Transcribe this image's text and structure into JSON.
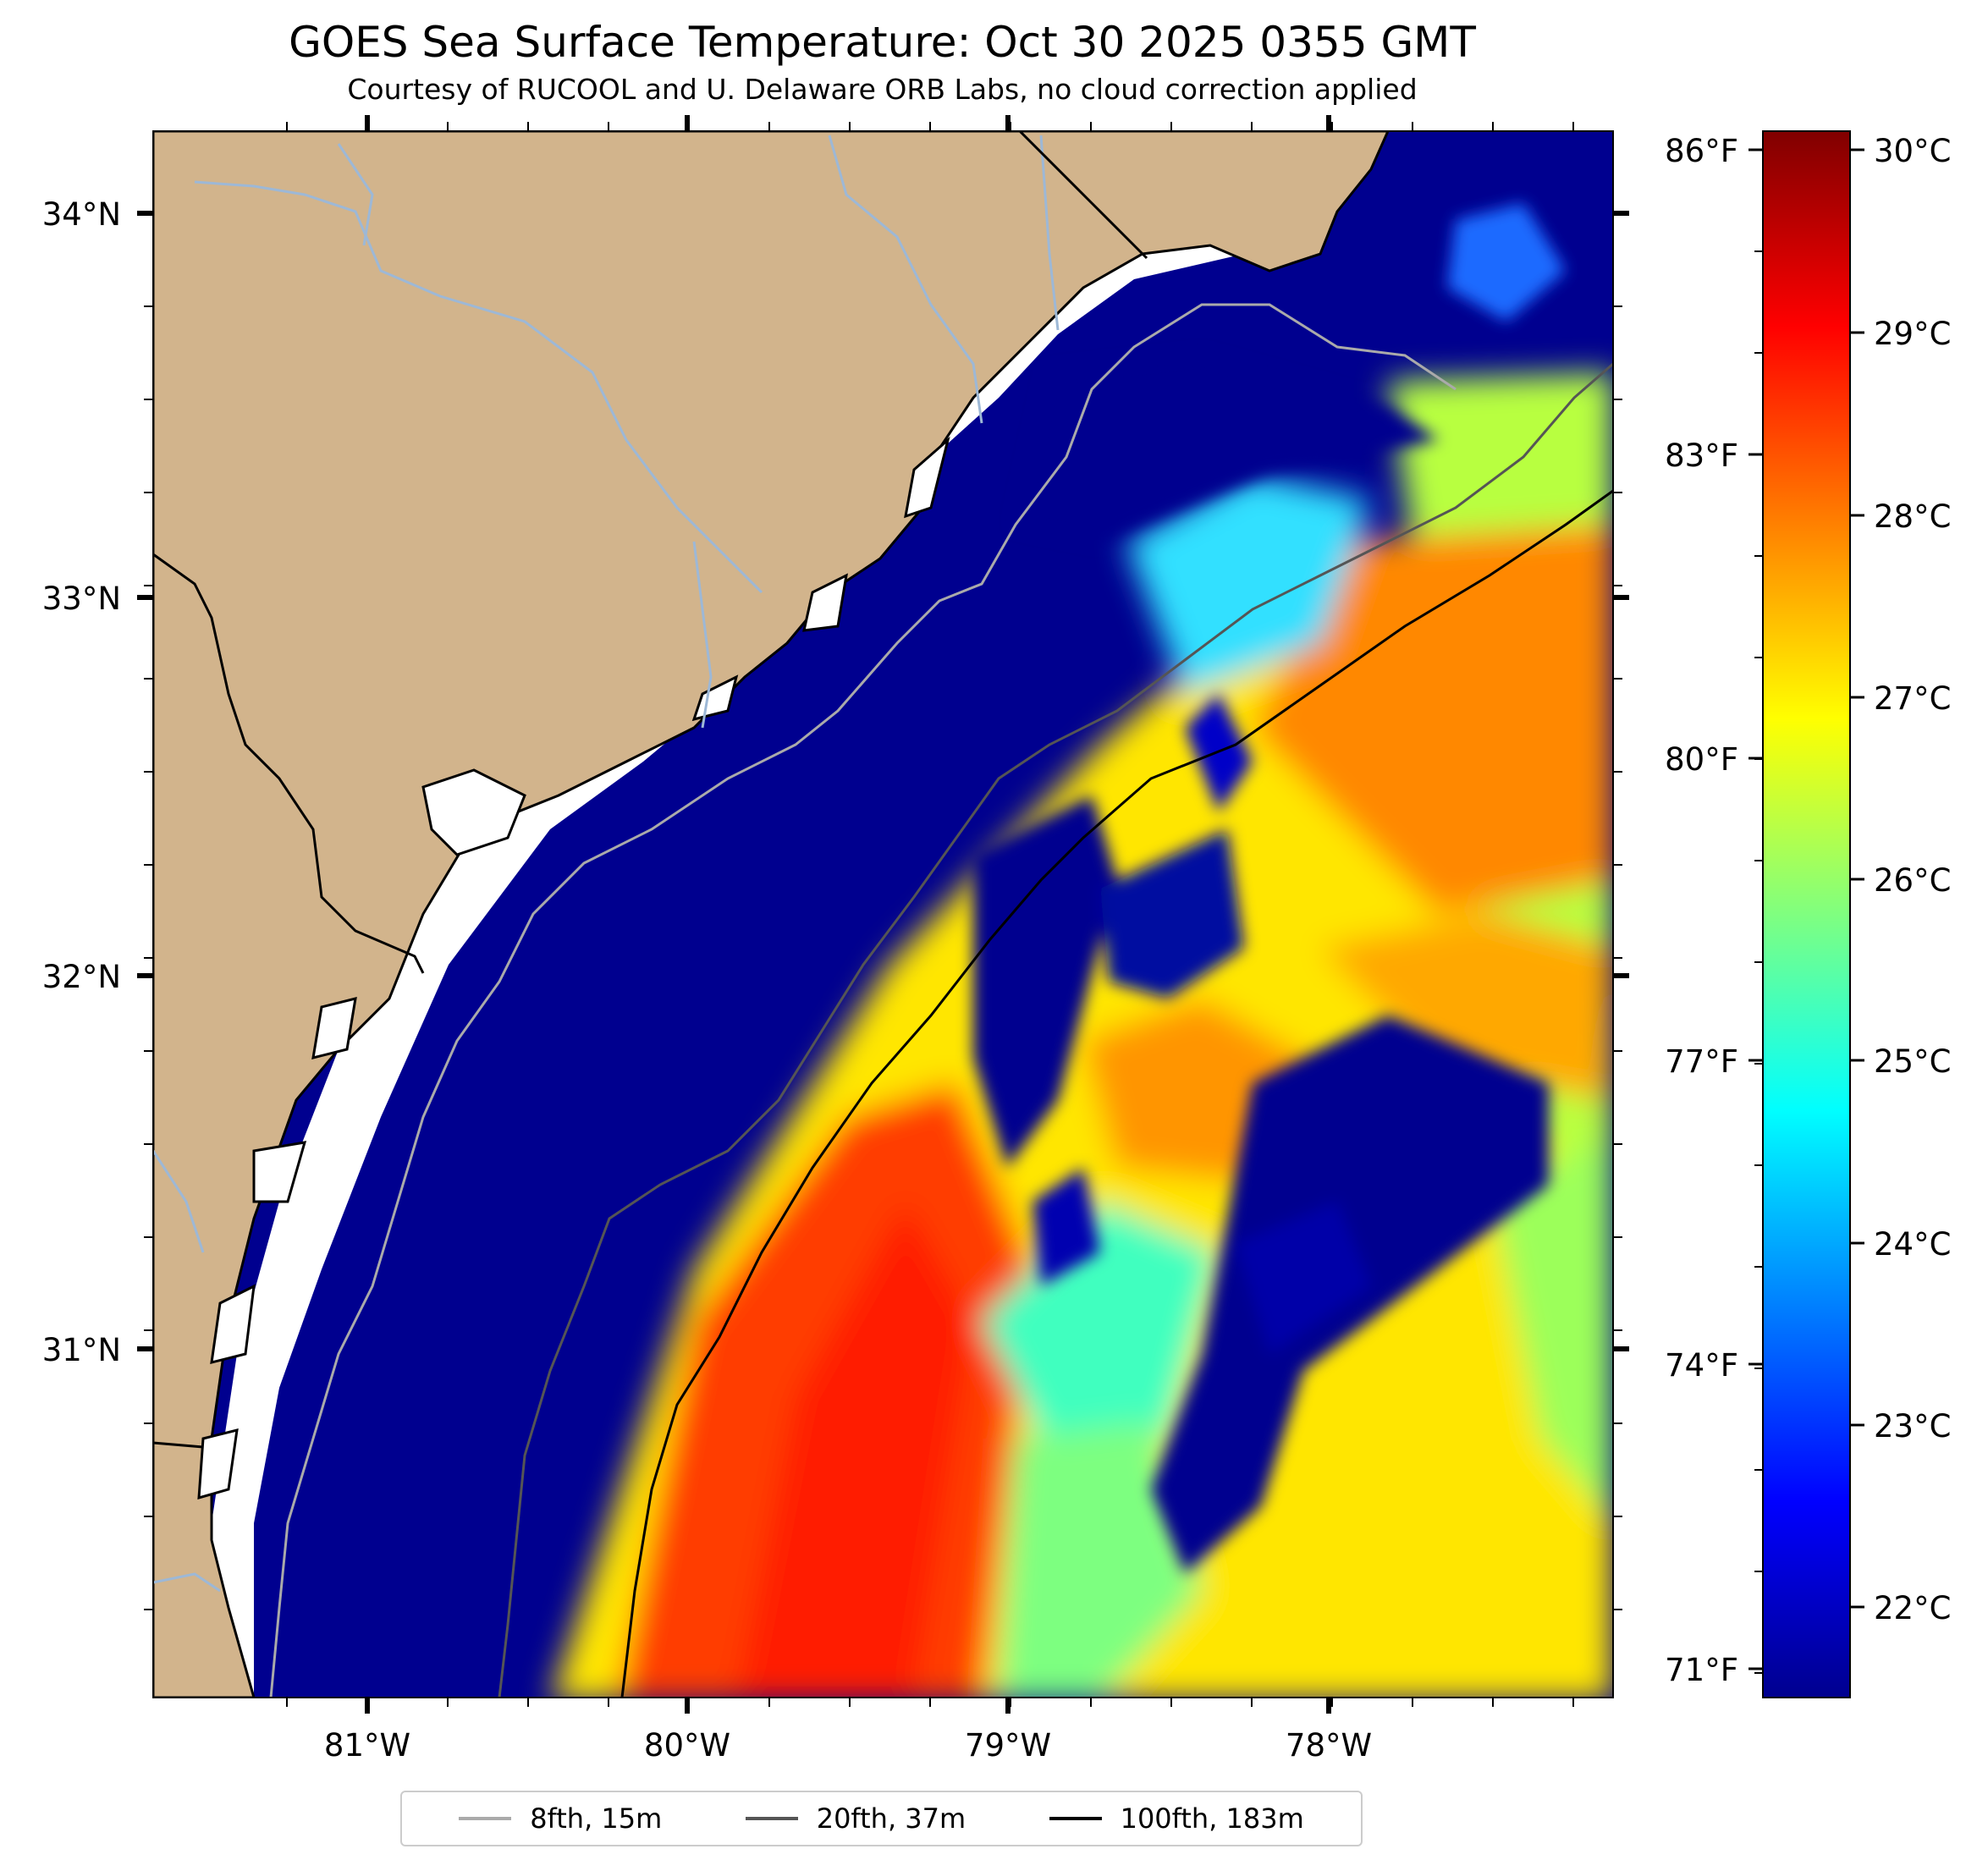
{
  "title": "GOES Sea Surface Temperature: Oct 30 2025 0355 GMT",
  "subtitle": "Courtesy of RUCOOL and U. Delaware ORB Labs, no cloud correction applied",
  "axes": {
    "lat_labels": [
      "34°N",
      "33°N",
      "32°N",
      "31°N"
    ],
    "lon_labels": [
      "81°W",
      "80°W",
      "79°W",
      "78°W"
    ],
    "f_labels": [
      "86°F",
      "83°F",
      "80°F",
      "77°F",
      "74°F",
      "71°F"
    ]
  },
  "colorbar": {
    "colormap": "jet",
    "min_c": 21.5,
    "max_c": 30.1,
    "labels": [
      "30°C",
      "29°C",
      "28°C",
      "27°C",
      "26°C",
      "25°C",
      "24°C",
      "23°C",
      "22°C"
    ]
  },
  "legend": [
    {
      "label": "8fth, 15m",
      "color": "#aaaaaa"
    },
    {
      "label": "20fth, 37m",
      "color": "#555555"
    },
    {
      "label": "100fth, 183m",
      "color": "#000000"
    }
  ],
  "colors": {
    "land": "#d2b48c",
    "cold_water": "#00008f",
    "no_data": "#ffffff",
    "rivers": "#9db8d6"
  }
}
